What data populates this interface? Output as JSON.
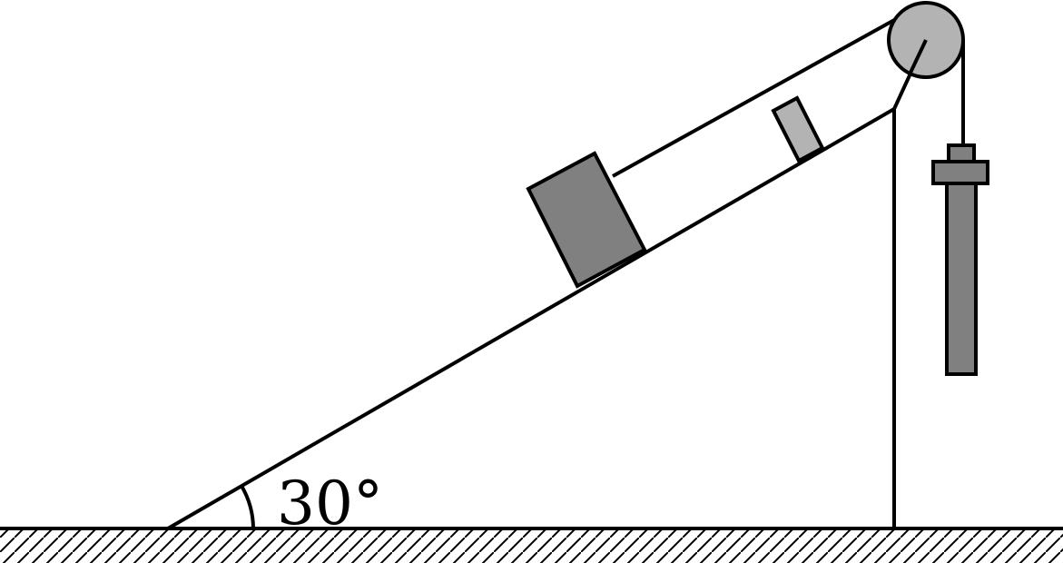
{
  "diagram": {
    "incline_angle_label": "30°"
  },
  "colors": {
    "line": "#000000",
    "block": "#808080",
    "small_block": "#b3b3b3",
    "pulley": "#b3b3b3",
    "hanging_weight": "#808080",
    "background": "#ffffff"
  }
}
